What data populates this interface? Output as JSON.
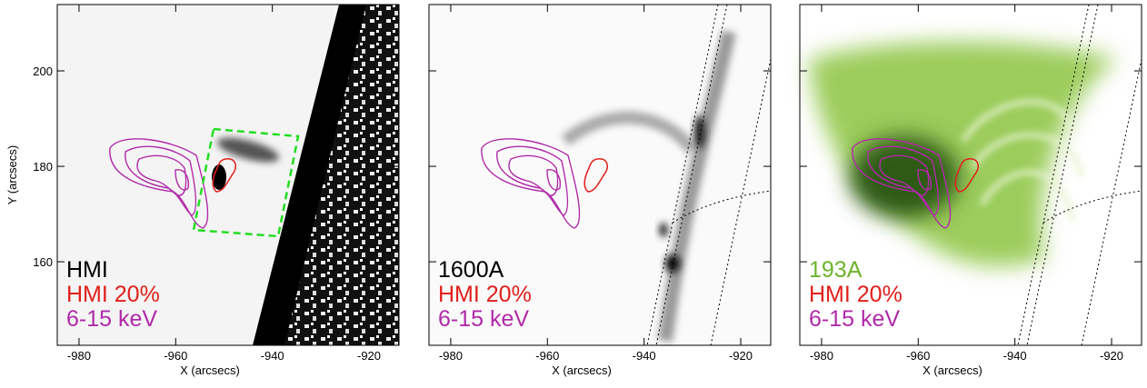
{
  "chart_data": [
    {
      "type": "image",
      "xlabel": "X (arcsecs)",
      "ylabel": "Y (arcsecs)",
      "xlim": [
        -984.5,
        -913.8
      ],
      "ylim": [
        142.5,
        213.9
      ],
      "xticks": [
        -980,
        -960,
        -940,
        -920
      ],
      "yticks": [
        160,
        180,
        200
      ],
      "show_ytick_labels": true,
      "legend": [
        {
          "label": "HMI",
          "color": "#000000"
        },
        {
          "label": "HMI 20%",
          "color": "#e0201c"
        },
        {
          "label": "6-15 keV",
          "color": "#b02aa8"
        }
      ]
    },
    {
      "type": "image",
      "xlabel": "X (arcsecs)",
      "xlim": [
        -984.5,
        -913.8
      ],
      "ylim": [
        142.5,
        213.9
      ],
      "xticks": [
        -980,
        -960,
        -940,
        -920
      ],
      "yticks": [
        160,
        180,
        200
      ],
      "show_ytick_labels": false,
      "legend": [
        {
          "label": "1600A",
          "color": "#000000"
        },
        {
          "label": "HMI 20%",
          "color": "#e0201c"
        },
        {
          "label": "6-15 keV",
          "color": "#b02aa8"
        }
      ]
    },
    {
      "type": "image",
      "xlabel": "X (arcsecs)",
      "xlim": [
        -984.5,
        -913.8
      ],
      "ylim": [
        142.5,
        213.9
      ],
      "xticks": [
        -980,
        -960,
        -940,
        -920
      ],
      "yticks": [
        160,
        180,
        200
      ],
      "show_ytick_labels": false,
      "legend": [
        {
          "label": "193A",
          "color": "#6cb42c"
        },
        {
          "label": "HMI 20%",
          "color": "#e0201c"
        },
        {
          "label": "6-15 keV",
          "color": "#b02aa8"
        }
      ]
    }
  ]
}
